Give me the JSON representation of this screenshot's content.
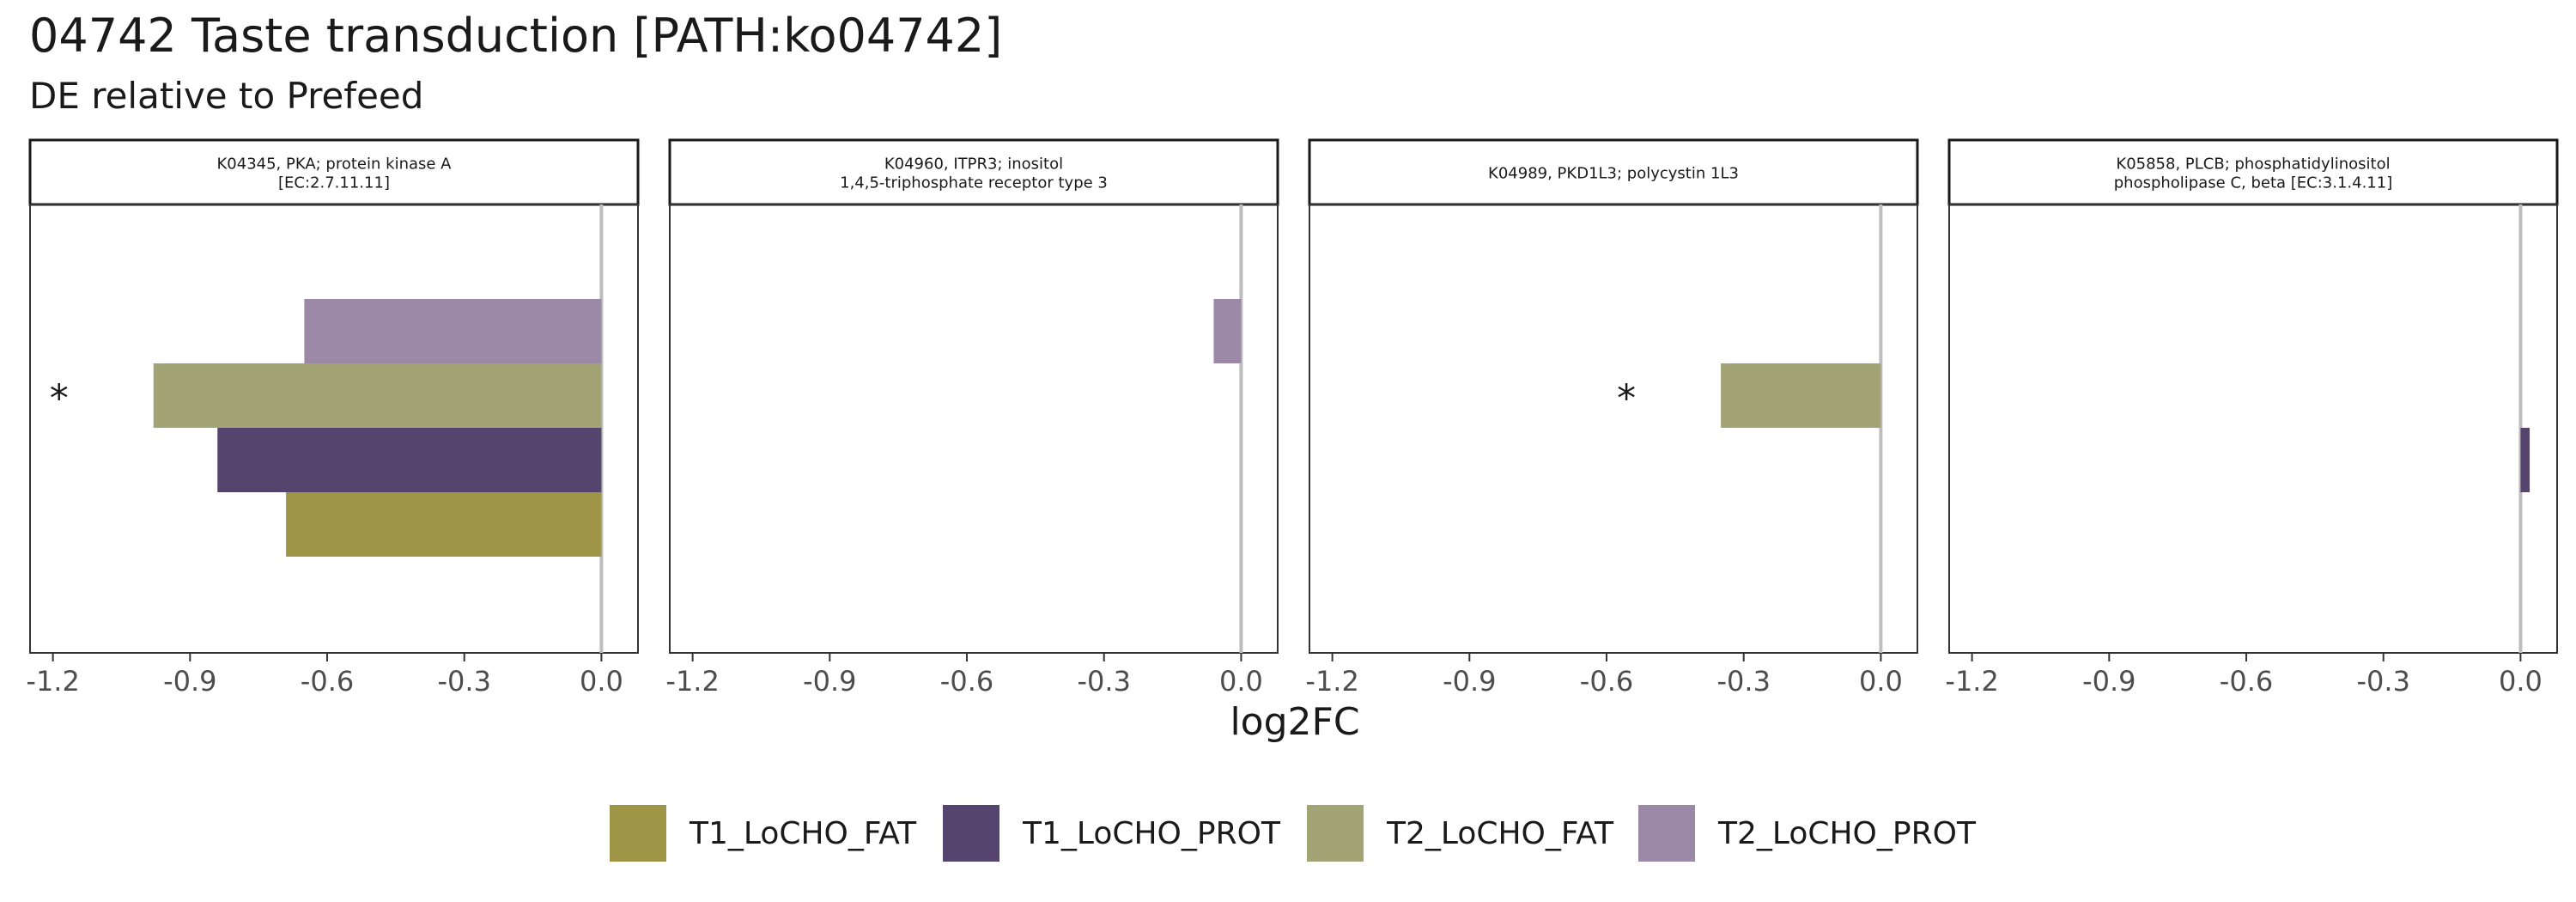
{
  "chart_data": {
    "type": "bar",
    "title": "04742 Taste transduction [PATH:ko04742]",
    "subtitle": "DE relative to Prefeed",
    "xlabel": "log2FC",
    "ylabel": "",
    "xlim": [
      -1.25,
      0.08
    ],
    "x_ticks": [
      "-1.2",
      "-0.9",
      "-0.6",
      "-0.3",
      "0.0"
    ],
    "x_tick_values": [
      -1.2,
      -0.9,
      -0.6,
      -0.3,
      0.0
    ],
    "orientation": "horizontal",
    "grid": false,
    "legend_position": "bottom",
    "series": [
      {
        "name": "T1_LoCHO_FAT",
        "color": "#9e9547"
      },
      {
        "name": "T1_LoCHO_PROT",
        "color": "#55456e"
      },
      {
        "name": "T2_LoCHO_FAT",
        "color": "#a3a476"
      },
      {
        "name": "T2_LoCHO_PROT",
        "color": "#9c88a7"
      }
    ],
    "panels": [
      {
        "label_lines": [
          "K04345, PKA; protein kinase A",
          "[EC:2.7.11.11]"
        ],
        "values": {
          "T1_LoCHO_FAT": -0.69,
          "T1_LoCHO_PROT": -0.84,
          "T2_LoCHO_FAT": -0.98,
          "T2_LoCHO_PROT": -0.65
        },
        "significant": [
          "T2_LoCHO_FAT"
        ]
      },
      {
        "label_lines": [
          "K04960, ITPR3; inositol",
          "1,4,5-triphosphate receptor type 3"
        ],
        "values": {
          "T1_LoCHO_FAT": null,
          "T1_LoCHO_PROT": null,
          "T2_LoCHO_FAT": null,
          "T2_LoCHO_PROT": -0.06
        },
        "significant": []
      },
      {
        "label_lines": [
          "K04989, PKD1L3; polycystin 1L3"
        ],
        "values": {
          "T1_LoCHO_FAT": null,
          "T1_LoCHO_PROT": null,
          "T2_LoCHO_FAT": -0.35,
          "T2_LoCHO_PROT": null
        },
        "significant": [
          "T2_LoCHO_FAT"
        ]
      },
      {
        "label_lines": [
          "K05858, PLCB; phosphatidylinositol",
          "phospholipase C, beta [EC:3.1.4.11]"
        ],
        "values": {
          "T1_LoCHO_FAT": null,
          "T1_LoCHO_PROT": 0.02,
          "T2_LoCHO_FAT": null,
          "T2_LoCHO_PROT": null
        },
        "significant": []
      }
    ],
    "significance_marker": "*",
    "zero_line_color": "#bdbdbd"
  }
}
